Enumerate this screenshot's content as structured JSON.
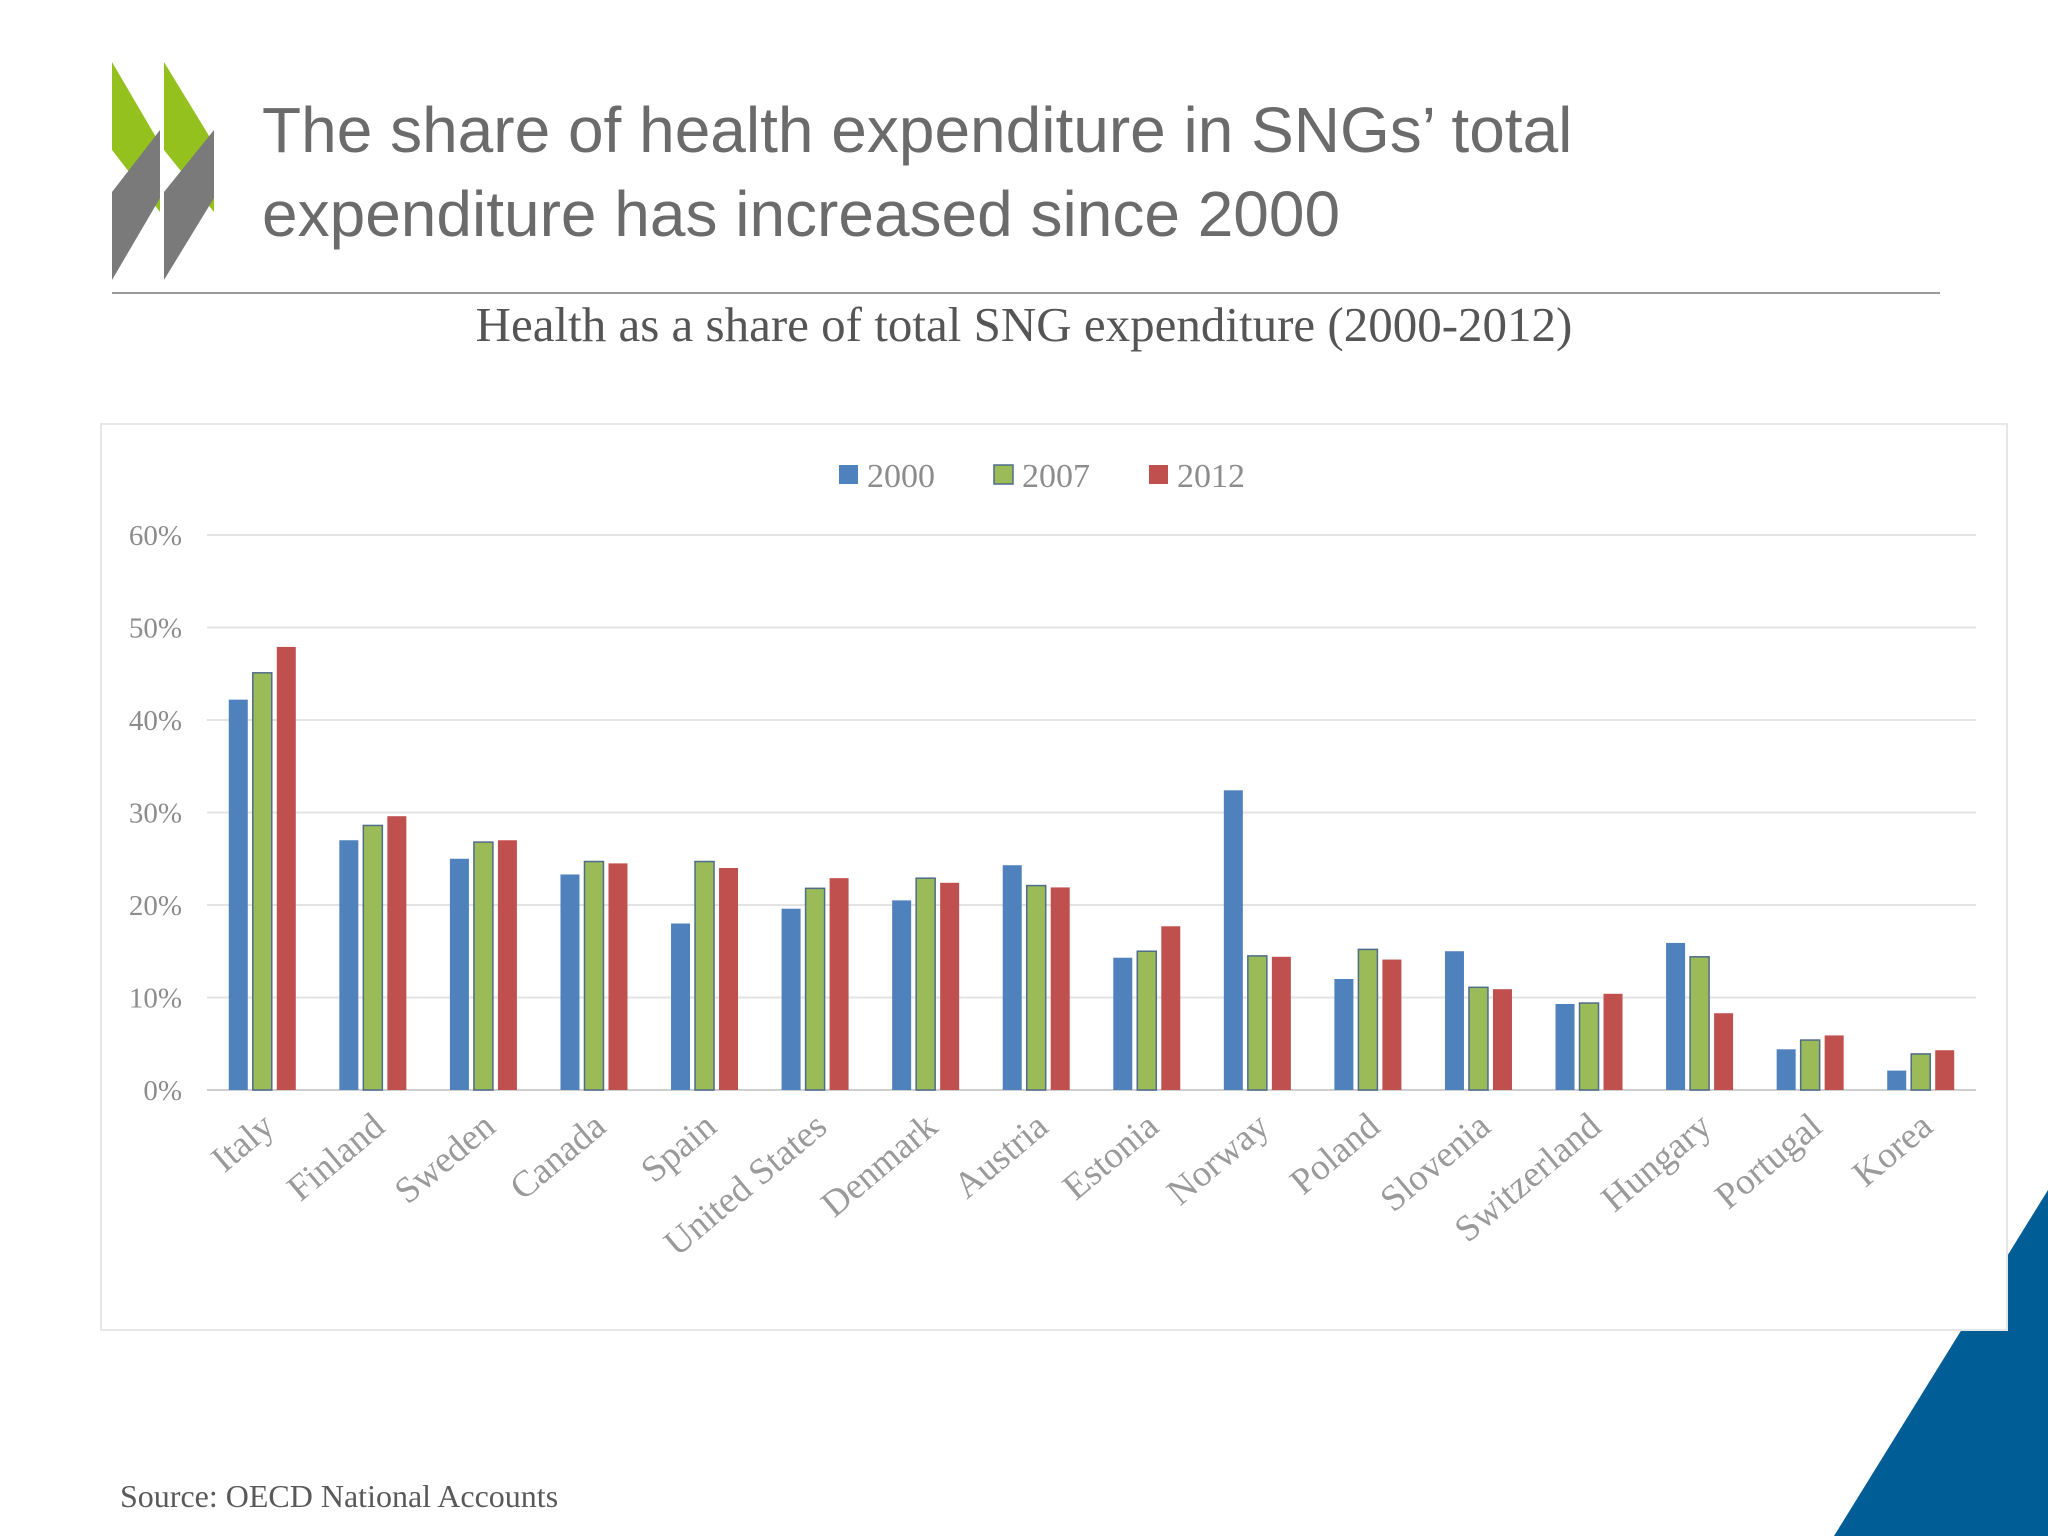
{
  "slide": {
    "title_line1": "The share of health expenditure in SNGs’ total",
    "title_line2": "expenditure has increased since 2000",
    "source": "Source: OECD National Accounts"
  },
  "colors": {
    "logo_green": "#95c11f",
    "logo_grey": "#7a7a7a",
    "corner_blue": "#005d95",
    "series_2000": "#4f81bd",
    "series_2007": "#9bbb59",
    "series_2012": "#c0504d",
    "gridline": "#e3e3e3",
    "axis_text": "#8c8c8c"
  },
  "chart_data": {
    "type": "bar",
    "title": "Health as a share of total SNG expenditure (2000-2012)",
    "xlabel": "",
    "ylabel": "",
    "ylim": [
      0,
      60
    ],
    "yticks": [
      "0%",
      "10%",
      "20%",
      "30%",
      "40%",
      "50%",
      "60%"
    ],
    "grid": true,
    "legend_position": "top-center",
    "categories": [
      "Italy",
      "Finland",
      "Sweden",
      "Canada",
      "Spain",
      "United States",
      "Denmark",
      "Austria",
      "Estonia",
      "Norway",
      "Poland",
      "Slovenia",
      "Switzerland",
      "Hungary",
      "Portugal",
      "Korea"
    ],
    "series": [
      {
        "name": "2000",
        "values": [
          42.2,
          27.0,
          25.0,
          23.3,
          18.0,
          19.6,
          20.5,
          24.3,
          14.3,
          32.4,
          12.0,
          15.0,
          9.3,
          15.9,
          4.4,
          2.1
        ]
      },
      {
        "name": "2007",
        "values": [
          45.1,
          28.6,
          26.8,
          24.7,
          24.7,
          21.8,
          22.9,
          22.1,
          15.0,
          14.5,
          15.2,
          11.1,
          9.4,
          14.4,
          5.4,
          3.9
        ]
      },
      {
        "name": "2012",
        "values": [
          47.9,
          29.6,
          27.0,
          24.5,
          24.0,
          22.9,
          22.4,
          21.9,
          17.7,
          14.4,
          14.1,
          10.9,
          10.4,
          8.3,
          5.9,
          4.3
        ]
      }
    ]
  }
}
